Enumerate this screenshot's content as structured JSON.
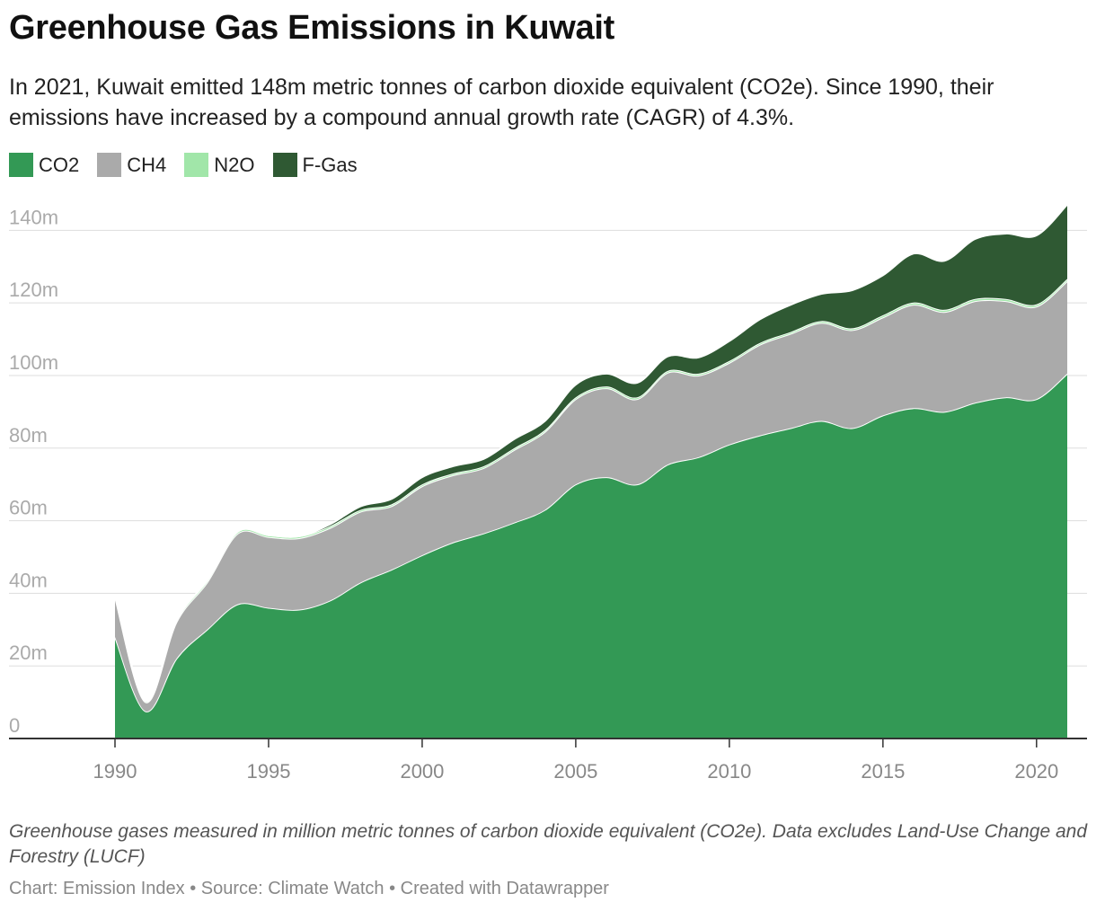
{
  "title": "Greenhouse Gas Emissions in Kuwait",
  "subtitle": "In 2021, Kuwait emitted 148m metric tonnes of carbon dioxide equivalent (CO2e). Since 1990, their emissions have increased by a compound annual growth rate (CAGR) of 4.3%.",
  "legend": [
    {
      "label": "CO2",
      "color": "#339955"
    },
    {
      "label": "CH4",
      "color": "#aaaaaa"
    },
    {
      "label": "N2O",
      "color": "#a1e6a9"
    },
    {
      "label": "F-Gas",
      "color": "#2f5933"
    }
  ],
  "note": "Greenhouse gases measured in million metric tonnes of carbon dioxide equivalent (CO2e). Data excludes Land-Use Change and Forestry (LUCF)",
  "byline": "Chart: Emission Index • Source: Climate Watch • Created with Datawrapper",
  "chart_data": {
    "type": "area",
    "stacked": true,
    "x": [
      1990,
      1991,
      1992,
      1993,
      1994,
      1995,
      1996,
      1997,
      1998,
      1999,
      2000,
      2001,
      2002,
      2003,
      2004,
      2005,
      2006,
      2007,
      2008,
      2009,
      2010,
      2011,
      2012,
      2013,
      2014,
      2015,
      2016,
      2017,
      2018,
      2019,
      2020,
      2021
    ],
    "series": [
      {
        "name": "CO2",
        "color": "#339955",
        "values": [
          28,
          7.5,
          22,
          30,
          37,
          36,
          35.5,
          38,
          43,
          46.5,
          50.5,
          54,
          56.5,
          59.5,
          63,
          70,
          72,
          70,
          75.5,
          77.5,
          81,
          83.5,
          85.5,
          87.5,
          85.5,
          89,
          91,
          90,
          92.5,
          94,
          93.5,
          100.5
        ]
      },
      {
        "name": "CH4",
        "color": "#aaaaaa",
        "values": [
          11,
          2.5,
          10,
          13,
          19.5,
          19.5,
          19.7,
          20,
          19.5,
          17.5,
          19,
          18.5,
          18,
          20,
          21.5,
          23.5,
          24.5,
          23.5,
          25.3,
          22.5,
          22.5,
          25,
          26,
          27,
          27,
          27,
          28.5,
          27.5,
          28,
          26.5,
          25.5,
          25.5
        ]
      },
      {
        "name": "N2O",
        "color": "#a1e6a9",
        "values": [
          0.5,
          0.3,
          0.5,
          0.5,
          0.5,
          0.5,
          0.5,
          0.5,
          0.5,
          0.5,
          0.5,
          0.5,
          0.5,
          0.5,
          0.5,
          0.5,
          0.5,
          0.5,
          0.5,
          0.5,
          0.5,
          0.5,
          0.5,
          0.5,
          0.5,
          0.6,
          0.6,
          0.6,
          0.6,
          0.6,
          0.6,
          0.6
        ]
      },
      {
        "name": "F-Gas",
        "color": "#2f5933",
        "values": [
          0,
          0,
          0,
          0,
          0,
          0,
          0,
          0.5,
          1,
          1.5,
          2,
          2,
          2,
          2.5,
          2.5,
          3.5,
          3.5,
          4,
          4,
          4.5,
          5.5,
          6.5,
          7.5,
          7.5,
          10.5,
          11,
          13.5,
          13.5,
          16.5,
          18,
          19,
          20.5
        ]
      }
    ],
    "ylim": [
      0,
      148
    ],
    "yticks": [
      0,
      20,
      40,
      60,
      80,
      100,
      120,
      140
    ],
    "ytick_labels": [
      "0",
      "20m",
      "40m",
      "60m",
      "80m",
      "100m",
      "120m",
      "140m"
    ],
    "xticks": [
      1990,
      1995,
      2000,
      2005,
      2010,
      2015,
      2020
    ],
    "xtick_labels": [
      "1990",
      "1995",
      "2000",
      "2005",
      "2010",
      "2015",
      "2020"
    ],
    "grid": true,
    "legend_position": "top-left"
  }
}
